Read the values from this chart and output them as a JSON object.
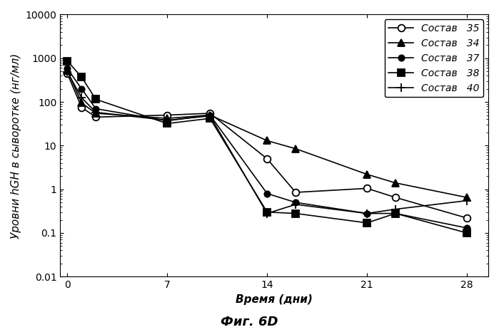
{
  "title": "",
  "xlabel": "Время (дни)",
  "ylabel": "Уровни hGH в сыворотке (нг/мл)",
  "caption": "Фиг. 6D",
  "ylim": [
    0.01,
    10000
  ],
  "xlim": [
    -0.5,
    29.5
  ],
  "xticks": [
    0,
    7,
    14,
    21,
    28
  ],
  "yticks": [
    0.01,
    0.1,
    1,
    10,
    100,
    1000,
    10000
  ],
  "ytick_labels": [
    "0.01",
    "0.1",
    "1",
    "10",
    "100",
    "1000",
    "10000"
  ],
  "series": [
    {
      "label": "Состав   35",
      "marker": "o",
      "fillstyle": "none",
      "color": "#000000",
      "x": [
        0,
        1,
        2,
        7,
        10,
        14,
        16,
        21,
        23,
        28
      ],
      "y": [
        450,
        75,
        45,
        50,
        55,
        5.0,
        0.85,
        1.05,
        0.65,
        0.22
      ]
    },
    {
      "label": "Состав   34",
      "marker": "^",
      "fillstyle": "full",
      "color": "#000000",
      "x": [
        0,
        1,
        2,
        7,
        10,
        14,
        16,
        21,
        23,
        28
      ],
      "y": [
        530,
        95,
        55,
        42,
        50,
        13,
        8.5,
        2.2,
        1.4,
        0.65
      ]
    },
    {
      "label": "Состав   37",
      "marker": "o",
      "fillstyle": "full",
      "color": "#000000",
      "x": [
        0,
        1,
        2,
        7,
        10,
        14,
        16,
        21,
        23,
        28
      ],
      "y": [
        580,
        200,
        70,
        37,
        50,
        0.8,
        0.5,
        0.28,
        0.28,
        0.13
      ]
    },
    {
      "label": "Состав   38",
      "marker": "s",
      "fillstyle": "full",
      "color": "#000000",
      "x": [
        0,
        1,
        2,
        7,
        10,
        14,
        16,
        21,
        23,
        28
      ],
      "y": [
        870,
        370,
        115,
        32,
        42,
        0.3,
        0.28,
        0.17,
        0.28,
        0.1
      ]
    },
    {
      "label": "Состав   40",
      "marker": "+",
      "fillstyle": "full",
      "color": "#000000",
      "x": [
        0,
        1,
        2,
        7,
        10,
        14,
        16,
        21,
        23,
        28
      ],
      "y": [
        490,
        125,
        58,
        38,
        48,
        0.28,
        0.45,
        0.28,
        0.35,
        0.55
      ]
    }
  ],
  "background_color": "#ffffff",
  "legend_loc": "upper right",
  "fontsize_axis_label": 11,
  "fontsize_tick": 10,
  "fontsize_legend": 10,
  "fontsize_caption": 13
}
